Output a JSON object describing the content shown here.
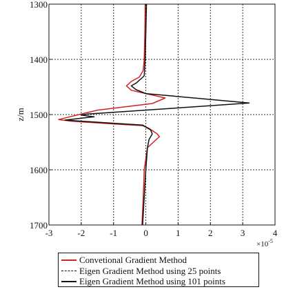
{
  "chart_data": {
    "type": "line",
    "ylabel": "z/m",
    "xlim": [
      -3,
      4
    ],
    "ylim": [
      1300,
      1700
    ],
    "y_inverted": true,
    "x_exponent_label": "×10",
    "x_exponent_power": "-5",
    "xticks": [
      -3,
      -2,
      -1,
      0,
      1,
      2,
      3,
      4
    ],
    "xtick_labels": [
      "-3",
      "-2",
      "-1",
      "0",
      "1",
      "2",
      "3",
      "4"
    ],
    "yticks": [
      1300,
      1400,
      1500,
      1600,
      1700
    ],
    "ytick_labels": [
      "1300",
      "1400",
      "1500",
      "1600",
      "1700"
    ],
    "grid": true,
    "legend_placement": "bottom",
    "series": [
      {
        "name": "Convetional Gradient Method",
        "color": "#d42020",
        "style": "solid",
        "points": [
          [
            -0.02,
            1300
          ],
          [
            -0.03,
            1350
          ],
          [
            -0.05,
            1400
          ],
          [
            -0.08,
            1420
          ],
          [
            -0.2,
            1432
          ],
          [
            -0.45,
            1440
          ],
          [
            -0.6,
            1448
          ],
          [
            -0.45,
            1456
          ],
          [
            0.0,
            1462
          ],
          [
            0.3,
            1466
          ],
          [
            0.6,
            1470
          ],
          [
            0.2,
            1480
          ],
          [
            -1.5,
            1492
          ],
          [
            -2.7,
            1509
          ],
          [
            -2.3,
            1512
          ],
          [
            -1.0,
            1517
          ],
          [
            -0.1,
            1520
          ],
          [
            0.1,
            1525
          ],
          [
            0.35,
            1535
          ],
          [
            0.42,
            1540
          ],
          [
            0.05,
            1560
          ],
          [
            0.0,
            1580
          ],
          [
            -0.05,
            1600
          ],
          [
            -0.08,
            1650
          ],
          [
            -0.12,
            1700
          ]
        ]
      },
      {
        "name": "Eigen Gradient Method using 25 points",
        "color": "#111111",
        "style": "dashed",
        "points": [
          [
            0.0,
            1300
          ],
          [
            0.0,
            1350
          ],
          [
            -0.02,
            1400
          ],
          [
            -0.05,
            1430
          ],
          [
            -0.3,
            1443
          ],
          [
            -0.45,
            1448
          ],
          [
            -0.3,
            1455
          ],
          [
            0.0,
            1462
          ],
          [
            1.5,
            1470
          ],
          [
            3.2,
            1479
          ],
          [
            1.5,
            1486
          ],
          [
            -1.8,
            1499
          ],
          [
            -2.0,
            1501
          ],
          [
            -1.6,
            1504
          ],
          [
            -2.5,
            1510
          ],
          [
            -1.2,
            1515
          ],
          [
            -0.1,
            1519
          ],
          [
            0.15,
            1528
          ],
          [
            0.2,
            1535
          ],
          [
            0.1,
            1545
          ],
          [
            0.05,
            1560
          ],
          [
            0.0,
            1600
          ],
          [
            -0.05,
            1650
          ],
          [
            -0.1,
            1700
          ]
        ]
      },
      {
        "name": "Eigen Gradient Method using 101 points",
        "color": "#111111",
        "style": "solid",
        "points": [
          [
            0.02,
            1300
          ],
          [
            0.0,
            1350
          ],
          [
            -0.02,
            1400
          ],
          [
            -0.05,
            1430
          ],
          [
            -0.3,
            1443
          ],
          [
            -0.45,
            1448
          ],
          [
            -0.3,
            1455
          ],
          [
            0.0,
            1462
          ],
          [
            1.5,
            1470
          ],
          [
            3.2,
            1479
          ],
          [
            1.5,
            1486
          ],
          [
            -1.8,
            1499
          ],
          [
            -2.0,
            1501
          ],
          [
            -1.6,
            1504
          ],
          [
            -2.5,
            1510
          ],
          [
            -1.2,
            1515
          ],
          [
            -0.1,
            1519
          ],
          [
            0.15,
            1528
          ],
          [
            0.2,
            1535
          ],
          [
            0.1,
            1545
          ],
          [
            0.05,
            1560
          ],
          [
            0.0,
            1600
          ],
          [
            -0.05,
            1650
          ],
          [
            -0.1,
            1700
          ]
        ]
      }
    ]
  }
}
